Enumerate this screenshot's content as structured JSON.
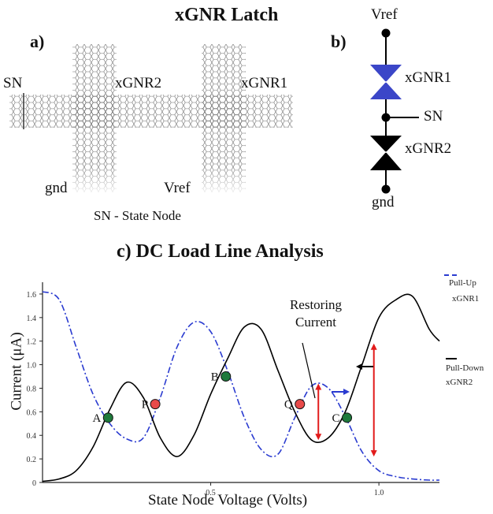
{
  "top_title": "xGNR Latch",
  "panel_a": {
    "label": "a)",
    "sn": "SN",
    "xgnr2": "xGNR2",
    "xgnr1": "xGNR1",
    "gnd": "gnd",
    "vref": "Vref",
    "caption": "SN - State Node"
  },
  "panel_b": {
    "label": "b)",
    "vref": "Vref",
    "xgnr1": "xGNR1",
    "sn": "SN",
    "xgnr2": "xGNR2",
    "gnd": "gnd",
    "colors": {
      "xgnr1": "#3b46c8",
      "xgnr2": "#000000"
    }
  },
  "chart_title": "c) DC Load Line Analysis",
  "chart_data": {
    "type": "line",
    "xlabel": "State Node Voltage (Volts)",
    "ylabel": "Current (μA)",
    "xlim": [
      0,
      1.18
    ],
    "ylim": [
      0,
      1.7
    ],
    "x_ticks": [
      {
        "v": 0.5,
        "label": "0.5"
      },
      {
        "v": 1.0,
        "label": "1.0"
      }
    ],
    "y_ticks": [
      {
        "v": 0,
        "label": "0"
      },
      {
        "v": 0.2,
        "label": "0.2"
      },
      {
        "v": 0.4,
        "label": "0.4"
      },
      {
        "v": 0.6,
        "label": "0.6"
      },
      {
        "v": 0.8,
        "label": "0.8"
      },
      {
        "v": 1.0,
        "label": "1.0"
      },
      {
        "v": 1.2,
        "label": "1.2"
      },
      {
        "v": 1.4,
        "label": "1.4"
      },
      {
        "v": 1.6,
        "label": "1.6"
      }
    ],
    "series": [
      {
        "name": "Pull-Up xGNR1",
        "style": "dashdot",
        "color": "#2a3bd0",
        "x": [
          0,
          0.05,
          0.1,
          0.15,
          0.2,
          0.25,
          0.3,
          0.35,
          0.4,
          0.45,
          0.5,
          0.55,
          0.6,
          0.65,
          0.7,
          0.75,
          0.8,
          0.85,
          0.9,
          0.95,
          1.0,
          1.05,
          1.1,
          1.15,
          1.18
        ],
        "y": [
          1.62,
          1.55,
          1.15,
          0.75,
          0.5,
          0.37,
          0.38,
          0.72,
          1.15,
          1.36,
          1.28,
          0.95,
          0.55,
          0.28,
          0.24,
          0.55,
          0.82,
          0.8,
          0.56,
          0.26,
          0.1,
          0.05,
          0.03,
          0.02,
          0.02
        ]
      },
      {
        "name": "Pull-Down xGNR2",
        "style": "solid",
        "color": "#000000",
        "x": [
          0,
          0.05,
          0.1,
          0.15,
          0.2,
          0.25,
          0.3,
          0.35,
          0.4,
          0.45,
          0.5,
          0.55,
          0.6,
          0.65,
          0.7,
          0.75,
          0.8,
          0.85,
          0.9,
          0.95,
          1.0,
          1.05,
          1.1,
          1.15,
          1.18
        ],
        "y": [
          0.01,
          0.03,
          0.1,
          0.3,
          0.62,
          0.85,
          0.72,
          0.38,
          0.22,
          0.4,
          0.75,
          1.05,
          1.32,
          1.3,
          0.95,
          0.6,
          0.36,
          0.38,
          0.6,
          1.0,
          1.4,
          1.55,
          1.58,
          1.3,
          1.2
        ]
      }
    ],
    "points": [
      {
        "label": "A",
        "x": 0.195,
        "y": 0.55,
        "color": "#1f7a3c"
      },
      {
        "label": "P",
        "x": 0.335,
        "y": 0.665,
        "color": "#e84a4a"
      },
      {
        "label": "B",
        "x": 0.545,
        "y": 0.9,
        "color": "#1f7a3c"
      },
      {
        "label": "Q",
        "x": 0.765,
        "y": 0.665,
        "color": "#e84a4a"
      },
      {
        "label": "C",
        "x": 0.905,
        "y": 0.55,
        "color": "#1f7a3c"
      }
    ],
    "annotation": "Restoring Current",
    "red_spans": [
      [
        0.36,
        0.84
      ],
      [
        0.22,
        1.18
      ]
    ],
    "grid": false
  },
  "legend": {
    "pullup": [
      "Pull-Up",
      "xGNR1"
    ],
    "pulldown": [
      "Pull-Down",
      "xGNR2"
    ]
  }
}
